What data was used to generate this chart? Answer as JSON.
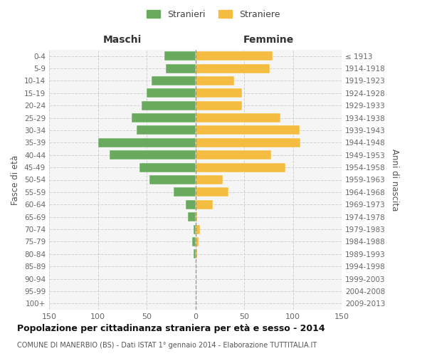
{
  "age_groups": [
    "0-4",
    "5-9",
    "10-14",
    "15-19",
    "20-24",
    "25-29",
    "30-34",
    "35-39",
    "40-44",
    "45-49",
    "50-54",
    "55-59",
    "60-64",
    "65-69",
    "70-74",
    "75-79",
    "80-84",
    "85-89",
    "90-94",
    "95-99",
    "100+"
  ],
  "birth_years": [
    "2009-2013",
    "2004-2008",
    "1999-2003",
    "1994-1998",
    "1989-1993",
    "1984-1988",
    "1979-1983",
    "1974-1978",
    "1969-1973",
    "1964-1968",
    "1959-1963",
    "1954-1958",
    "1949-1953",
    "1944-1948",
    "1939-1943",
    "1934-1938",
    "1929-1933",
    "1924-1928",
    "1919-1923",
    "1914-1918",
    "≤ 1913"
  ],
  "males": [
    32,
    30,
    45,
    50,
    55,
    65,
    60,
    100,
    88,
    57,
    47,
    22,
    10,
    8,
    2,
    3,
    2,
    0,
    0,
    0,
    0
  ],
  "females": [
    79,
    76,
    40,
    48,
    48,
    87,
    107,
    108,
    78,
    92,
    28,
    34,
    18,
    2,
    5,
    3,
    2,
    0,
    0,
    0,
    0
  ],
  "male_color": "#6aaa5e",
  "female_color": "#f5bc42",
  "bg_color": "#f5f5f5",
  "grid_color": "#cccccc",
  "title": "Popolazione per cittadinanza straniera per età e sesso - 2014",
  "subtitle": "COMUNE DI MANERBIO (BS) - Dati ISTAT 1° gennaio 2014 - Elaborazione TUTTITALIA.IT",
  "xlabel_left": "Maschi",
  "xlabel_right": "Femmine",
  "ylabel_left": "Fasce di età",
  "ylabel_right": "Anni di nascita",
  "legend_male": "Stranieri",
  "legend_female": "Straniere",
  "xlim": 150
}
